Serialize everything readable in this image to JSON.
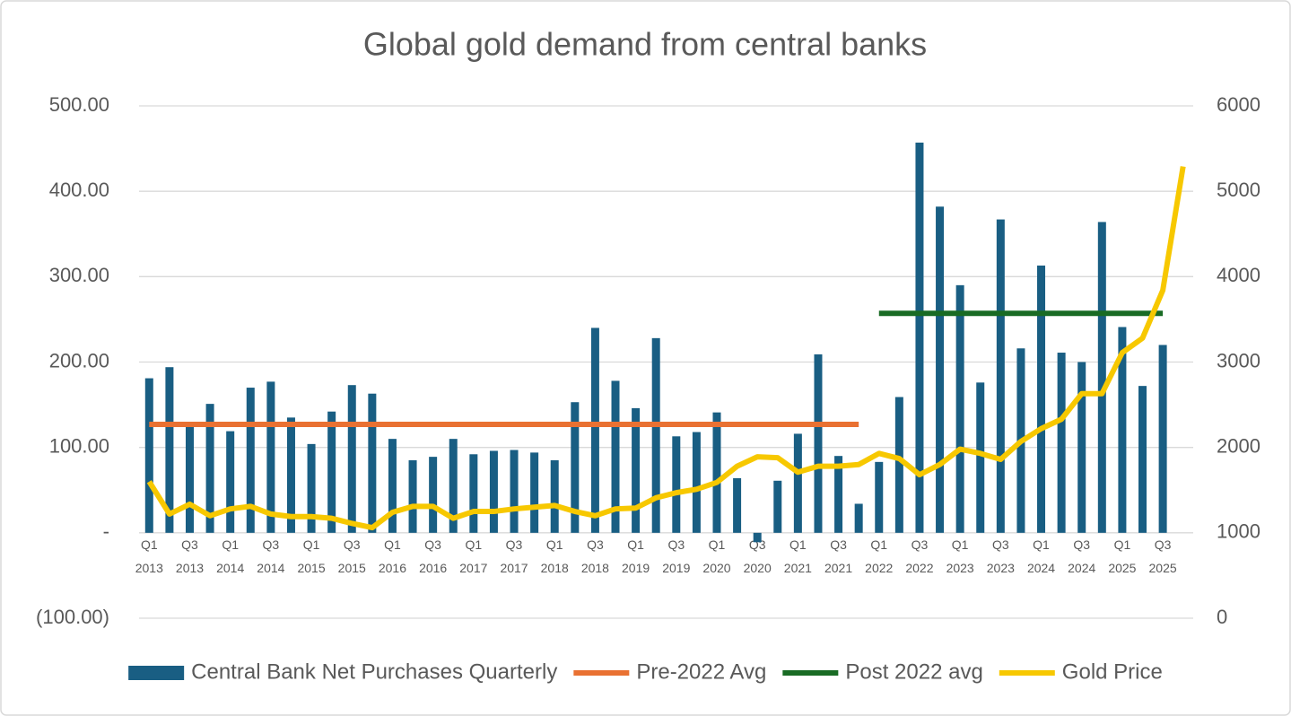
{
  "chart_data": {
    "type": "bar",
    "title": "Global gold demand from central banks",
    "categories": [
      "Q1 2013",
      null,
      "Q3 2013",
      null,
      "Q1 2014",
      null,
      "Q3 2014",
      null,
      "Q1 2015",
      null,
      "Q3 2015",
      null,
      "Q1 2016",
      null,
      "Q3 2016",
      null,
      "Q1 2017",
      null,
      "Q3 2017",
      null,
      "Q1 2018",
      null,
      "Q3 2018",
      null,
      "Q1 2019",
      null,
      "Q3 2019",
      null,
      "Q1 2020",
      null,
      "Q3 2020",
      null,
      "Q1 2021",
      null,
      "Q3 2021",
      null,
      "Q1 2022",
      null,
      "Q3 2022",
      null,
      "Q1 2023",
      null,
      "Q3 2023",
      null,
      "Q1 2024",
      null,
      "Q3 2024",
      null,
      "Q1 2025",
      null,
      "Q3 2025",
      null
    ],
    "series": [
      {
        "name": "Central Bank Net Purchases Quarterly",
        "type": "bar",
        "color": "#195e83",
        "values": [
          181,
          194,
          125,
          151,
          119,
          170,
          177,
          135,
          104,
          142,
          173,
          163,
          110,
          85,
          89,
          110,
          92,
          96,
          97,
          94,
          85,
          153,
          240,
          178,
          146,
          228,
          113,
          118,
          141,
          64,
          -11,
          61,
          116,
          209,
          90,
          34,
          83,
          159,
          457,
          382,
          290,
          176,
          367,
          216,
          313,
          211,
          200,
          364,
          241,
          172,
          220,
          null
        ]
      },
      {
        "name": "Pre-2022 Avg",
        "type": "line",
        "color": "#e97132",
        "values": [
          127,
          127,
          127,
          127,
          127,
          127,
          127,
          127,
          127,
          127,
          127,
          127,
          127,
          127,
          127,
          127,
          127,
          127,
          127,
          127,
          127,
          127,
          127,
          127,
          127,
          127,
          127,
          127,
          127,
          127,
          127,
          127,
          127,
          127,
          127,
          127,
          null,
          null,
          null,
          null,
          null,
          null,
          null,
          null,
          null,
          null,
          null,
          null,
          null,
          null,
          null,
          null
        ]
      },
      {
        "name": "Post 2022 avg",
        "type": "line",
        "color": "#196b24",
        "values": [
          null,
          null,
          null,
          null,
          null,
          null,
          null,
          null,
          null,
          null,
          null,
          null,
          null,
          null,
          null,
          null,
          null,
          null,
          null,
          null,
          null,
          null,
          null,
          null,
          null,
          null,
          null,
          null,
          null,
          null,
          null,
          null,
          null,
          null,
          null,
          null,
          257,
          257,
          257,
          257,
          257,
          257,
          257,
          257,
          257,
          257,
          257,
          257,
          257,
          257,
          257,
          null
        ]
      },
      {
        "name": "Gold Price",
        "type": "line",
        "color": "#f7c800",
        "axis": "y2",
        "values": [
          1600,
          1220,
          1335,
          1200,
          1280,
          1310,
          1220,
          1190,
          1190,
          1170,
          1110,
          1060,
          1240,
          1310,
          1310,
          1170,
          1250,
          1250,
          1280,
          1300,
          1320,
          1250,
          1200,
          1280,
          1290,
          1410,
          1470,
          1510,
          1590,
          1780,
          1890,
          1880,
          1710,
          1780,
          1780,
          1800,
          1930,
          1870,
          1680,
          1800,
          1980,
          1930,
          1860,
          2070,
          2220,
          2330,
          2630,
          2630,
          3110,
          3280,
          3840,
          5290
        ]
      }
    ],
    "ylim": [
      -100,
      500
    ],
    "yticks": [
      {
        "value": -100,
        "label": "(100.00)"
      },
      {
        "value": 0,
        "label": "-"
      },
      {
        "value": 100,
        "label": "100.00"
      },
      {
        "value": 200,
        "label": "200.00"
      },
      {
        "value": 300,
        "label": "300.00"
      },
      {
        "value": 400,
        "label": "400.00"
      },
      {
        "value": 500,
        "label": "500.00"
      }
    ],
    "y2lim": [
      0,
      6000
    ],
    "y2ticks": [
      0,
      1000,
      2000,
      3000,
      4000,
      5000,
      6000
    ],
    "grid": true,
    "legend": "bottom"
  }
}
